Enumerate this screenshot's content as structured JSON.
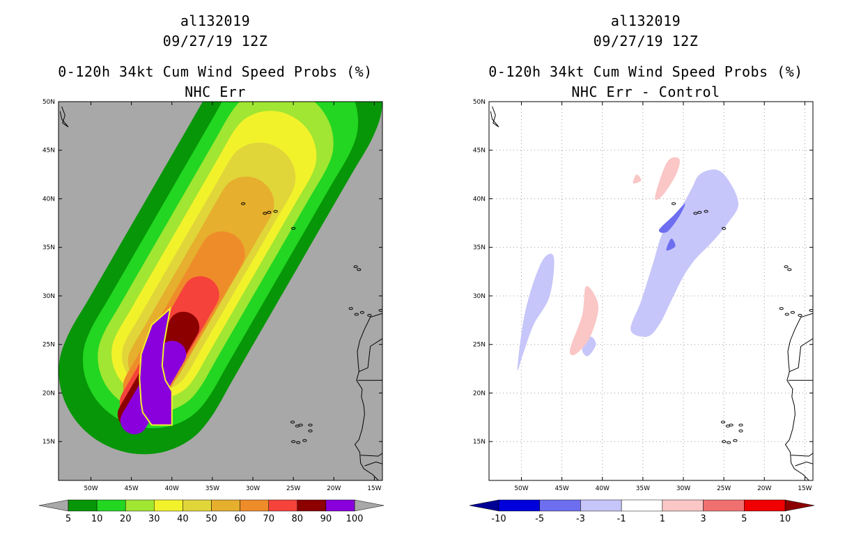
{
  "chart_data": [
    {
      "type": "heatmap",
      "storm_id": "al132019",
      "date": "09/27/19 12Z",
      "title": "0-120h 34kt Cum Wind Speed Probs (%)",
      "subtitle": "NHC Err",
      "lat_ticks": [
        "15N",
        "20N",
        "25N",
        "30N",
        "35N",
        "40N",
        "45N",
        "50N"
      ],
      "lon_ticks": [
        "50W",
        "45W",
        "40W",
        "35W",
        "30W",
        "25W",
        "20W",
        "15W"
      ],
      "grid": false,
      "background": "#a8a8a8",
      "colorbar": {
        "labels": [
          "5",
          "10",
          "20",
          "30",
          "40",
          "50",
          "60",
          "70",
          "80",
          "90",
          "100"
        ],
        "colors": [
          "#079607",
          "#22d622",
          "#a0e632",
          "#f2f22b",
          "#e0d63a",
          "#e6af2d",
          "#ef8c2a",
          "#f5423a",
          "#8c0000",
          "#8900dc"
        ],
        "end_colors": [
          "#a8a8a8",
          "#a8a8a8"
        ]
      },
      "contours": [
        {
          "level": 5,
          "color": "#079607",
          "center": [
            -35.5,
            34.0
          ],
          "along_deg": [
            -14,
            19
          ],
          "half_width_deg": 8.5
        },
        {
          "level": 10,
          "color": "#22d622",
          "center": [
            -35.5,
            33.5
          ],
          "along_deg": [
            -12,
            17
          ],
          "half_width_deg": 7
        },
        {
          "level": 20,
          "color": "#a0e632",
          "center": [
            -35.8,
            33.0
          ],
          "along_deg": [
            -11,
            15
          ],
          "half_width_deg": 5.7
        },
        {
          "level": 30,
          "color": "#f2f22b",
          "center": [
            -36.0,
            32.5
          ],
          "along_deg": [
            -10,
            14
          ],
          "half_width_deg": 4.6
        },
        {
          "level": 40,
          "color": "#e0d63a",
          "center": [
            -36.5,
            31.5
          ],
          "along_deg": [
            -9,
            12.5
          ],
          "half_width_deg": 3.6
        },
        {
          "level": 50,
          "color": "#e6af2d",
          "center": [
            -37.0,
            30.5
          ],
          "along_deg": [
            -8.5,
            10.5
          ],
          "half_width_deg": 2.8
        },
        {
          "level": 60,
          "color": "#ef8c2a",
          "center": [
            -38.5,
            27.5
          ],
          "along_deg": [
            -8,
            8
          ],
          "half_width_deg": 2.3
        },
        {
          "level": 70,
          "color": "#f5423a",
          "center": [
            -40.0,
            25.0
          ],
          "along_deg": [
            -7,
            6
          ],
          "half_width_deg": 1.9
        },
        {
          "level": 80,
          "color": "#8c0000",
          "center": [
            -41.5,
            22.5
          ],
          "along_deg": [
            -5.5,
            5
          ],
          "half_width_deg": 1.6
        },
        {
          "level": 90,
          "color": "#8900dc",
          "center": [
            -42.0,
            21.0
          ],
          "along_deg": [
            -4.5,
            3.5
          ],
          "half_width_deg": 1.4
        }
      ],
      "max_region": {
        "level": 100,
        "color": "#8900dc",
        "polygon": [
          [
            -43.6,
            18.0
          ],
          [
            -42.5,
            16.7
          ],
          [
            -40.0,
            16.7
          ],
          [
            -40.0,
            20.2
          ],
          [
            -40.8,
            21.3
          ],
          [
            -41.2,
            22.8
          ],
          [
            -41.0,
            25.0
          ],
          [
            -40.2,
            28.7
          ],
          [
            -42.5,
            27.0
          ],
          [
            -43.8,
            24.0
          ],
          [
            -44.0,
            21.5
          ],
          [
            -43.8,
            19.0
          ]
        ]
      },
      "xlim": [
        -54.0,
        -14.0
      ],
      "ylim": [
        11.0,
        50.0
      ]
    },
    {
      "type": "heatmap",
      "storm_id": "al132019",
      "date": "09/27/19 12Z",
      "title": "0-120h 34kt Cum Wind Speed Probs (%)",
      "subtitle": "NHC Err - Control",
      "lat_ticks": [
        "15N",
        "20N",
        "25N",
        "30N",
        "35N",
        "40N",
        "45N",
        "50N"
      ],
      "lon_ticks": [
        "50W",
        "45W",
        "40W",
        "35W",
        "30W",
        "25W",
        "20W",
        "15W"
      ],
      "grid": true,
      "background": "#ffffff",
      "colorbar": {
        "labels": [
          "-10",
          "-5",
          "-3",
          "-1",
          "1",
          "3",
          "5",
          "10"
        ],
        "colors": [
          "#0000dc",
          "#6e6ef0",
          "#c6c6fa",
          "#ffffff",
          "#fac6c6",
          "#f07070",
          "#f00000"
        ],
        "end_colors": [
          "#000096",
          "#8c0000"
        ]
      },
      "anomalies": [
        {
          "level": "-3 to -1",
          "color": "#c6c6fa",
          "polygon": [
            [
              -36.5,
              26.5
            ],
            [
              -35.2,
              29.5
            ],
            [
              -33.8,
              33.2
            ],
            [
              -32.5,
              36.6
            ],
            [
              -30.5,
              38.8
            ],
            [
              -29.0,
              41.0
            ],
            [
              -28.0,
              42.5
            ],
            [
              -26.0,
              43.0
            ],
            [
              -24.5,
              42.0
            ],
            [
              -23.2,
              39.5
            ],
            [
              -24.5,
              37.5
            ],
            [
              -26.5,
              35.5
            ],
            [
              -28.5,
              33.8
            ],
            [
              -30.0,
              32.0
            ],
            [
              -31.5,
              29.5
            ],
            [
              -33.0,
              27.0
            ],
            [
              -34.5,
              25.8
            ]
          ]
        },
        {
          "level": "-3 to -1",
          "color": "#c6c6fa",
          "polygon": [
            [
              -50.5,
              22.5
            ],
            [
              -49.5,
              28.5
            ],
            [
              -47.5,
              33.5
            ],
            [
              -46.0,
              34.0
            ],
            [
              -46.5,
              30.0
            ],
            [
              -48.5,
              27.0
            ],
            [
              -49.8,
              24.0
            ]
          ]
        },
        {
          "level": "-3 to -1",
          "color": "#c6c6fa",
          "polygon": [
            [
              -42.5,
              24.5
            ],
            [
              -41.5,
              25.8
            ],
            [
              -40.8,
              25.0
            ],
            [
              -41.8,
              23.8
            ]
          ]
        },
        {
          "level": "-5 to -3",
          "color": "#6e6ef0",
          "polygon": [
            [
              -33.0,
              36.8
            ],
            [
              -31.2,
              38.3
            ],
            [
              -29.8,
              39.5
            ],
            [
              -30.5,
              38.2
            ],
            [
              -32.0,
              36.6
            ]
          ]
        },
        {
          "level": "-5 to -3",
          "color": "#6e6ef0",
          "polygon": [
            [
              -32.1,
              34.7
            ],
            [
              -31.5,
              35.9
            ],
            [
              -31.0,
              35.1
            ]
          ]
        },
        {
          "level": "1 to 3",
          "color": "#fac6c6",
          "polygon": [
            [
              -44.0,
              24.5
            ],
            [
              -42.5,
              28.0
            ],
            [
              -42.0,
              31.0
            ],
            [
              -40.5,
              29.0
            ],
            [
              -41.5,
              25.8
            ],
            [
              -43.3,
              24.0
            ]
          ]
        },
        {
          "level": "1 to 3",
          "color": "#fac6c6",
          "polygon": [
            [
              -33.5,
              40.2
            ],
            [
              -32.0,
              43.8
            ],
            [
              -30.5,
              44.1
            ],
            [
              -30.9,
              42.5
            ],
            [
              -32.6,
              40.3
            ]
          ]
        },
        {
          "level": "1 to 3",
          "color": "#fac6c6",
          "polygon": [
            [
              -36.2,
              41.6
            ],
            [
              -35.8,
              42.5
            ],
            [
              -35.2,
              41.9
            ]
          ]
        }
      ],
      "xlim": [
        -54.0,
        -14.0
      ],
      "ylim": [
        11.0,
        50.0
      ]
    }
  ]
}
